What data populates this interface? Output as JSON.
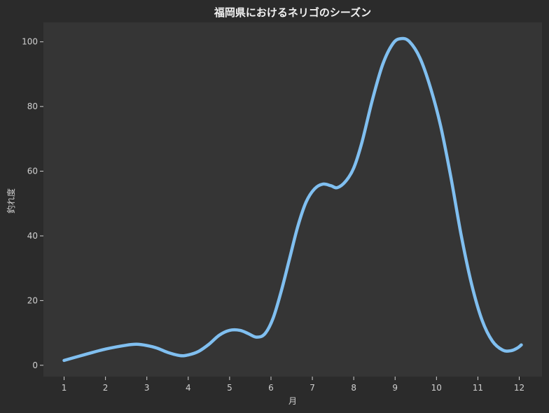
{
  "chart_data": {
    "type": "line",
    "title": "福岡県におけるネリゴのシーズン",
    "xlabel": "月",
    "ylabel": "釣れ度",
    "x": [
      1,
      2,
      3,
      4,
      5,
      6,
      7,
      8,
      9,
      10,
      11,
      12
    ],
    "x_tick_labels": [
      "1",
      "2",
      "3",
      "4",
      "5",
      "6",
      "7",
      "8",
      "9",
      "10",
      "11",
      "12"
    ],
    "xlim": [
      0.5,
      12.55
    ],
    "ylim": [
      -3.5,
      106
    ],
    "y_ticks": [
      0,
      20,
      40,
      60,
      80,
      100
    ],
    "y_tick_labels": [
      "0",
      "20",
      "40",
      "60",
      "80",
      "100"
    ],
    "grid": false,
    "colors": {
      "background": "#2b2b2b",
      "plot_background": "#353535",
      "line": "#80bff0",
      "text": "#d0d0d0"
    },
    "series": [
      {
        "curve": [
          [
            1,
            1.5
          ],
          [
            1.5,
            3.3
          ],
          [
            2,
            5
          ],
          [
            2.5,
            6.2
          ],
          [
            2.75,
            6.5
          ],
          [
            3,
            6.1
          ],
          [
            3.25,
            5.3
          ],
          [
            3.5,
            4.0
          ],
          [
            3.8,
            3.0
          ],
          [
            4.0,
            3.2
          ],
          [
            4.25,
            4.3
          ],
          [
            4.5,
            6.5
          ],
          [
            4.75,
            9.3
          ],
          [
            5.0,
            10.8
          ],
          [
            5.25,
            10.8
          ],
          [
            5.45,
            9.8
          ],
          [
            5.65,
            8.7
          ],
          [
            5.85,
            9.7
          ],
          [
            6.05,
            14.5
          ],
          [
            6.25,
            23
          ],
          [
            6.45,
            33
          ],
          [
            6.65,
            43
          ],
          [
            6.85,
            50.5
          ],
          [
            7.05,
            54.5
          ],
          [
            7.25,
            56
          ],
          [
            7.45,
            55.5
          ],
          [
            7.6,
            54.9
          ],
          [
            7.8,
            56.8
          ],
          [
            8.0,
            61
          ],
          [
            8.2,
            69
          ],
          [
            8.45,
            82
          ],
          [
            8.7,
            93
          ],
          [
            8.95,
            99.5
          ],
          [
            9.15,
            101
          ],
          [
            9.35,
            100
          ],
          [
            9.6,
            95
          ],
          [
            9.85,
            86
          ],
          [
            10.1,
            74
          ],
          [
            10.35,
            58
          ],
          [
            10.6,
            40
          ],
          [
            10.85,
            25
          ],
          [
            11.1,
            14
          ],
          [
            11.35,
            7.5
          ],
          [
            11.6,
            4.7
          ],
          [
            11.8,
            4.5
          ],
          [
            11.95,
            5.3
          ],
          [
            12.05,
            6.3
          ]
        ]
      }
    ]
  }
}
